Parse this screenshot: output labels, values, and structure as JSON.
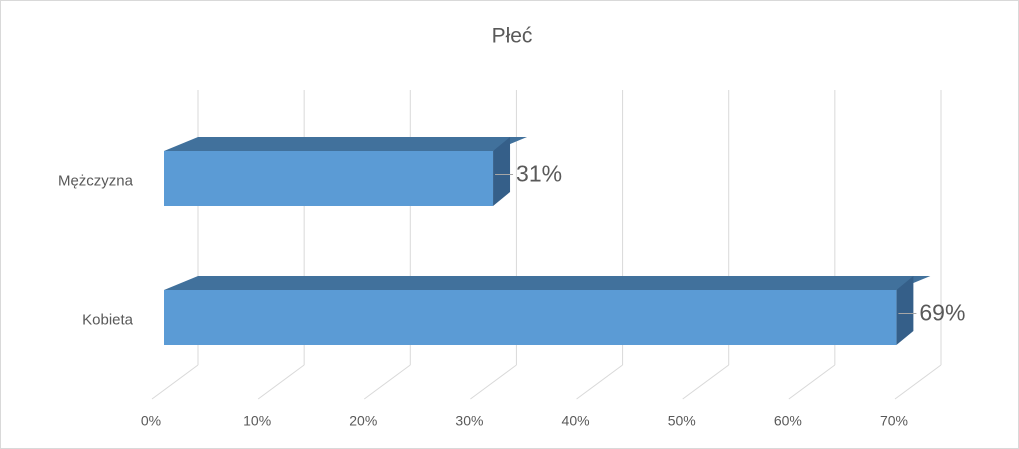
{
  "chart_data": {
    "type": "bar3d",
    "title": "Płeć",
    "categories": [
      "Mężczyzna",
      "Kobieta"
    ],
    "values": [
      31,
      69
    ],
    "value_labels": [
      "31%",
      "69%"
    ],
    "color": "#5b9bd5",
    "xlim": [
      0,
      70
    ],
    "xticks": [
      {
        "value": 0,
        "label": "0%"
      },
      {
        "value": 10,
        "label": "10%"
      },
      {
        "value": 20,
        "label": "20%"
      },
      {
        "value": 30,
        "label": "30%"
      },
      {
        "value": 40,
        "label": "40%"
      },
      {
        "value": 50,
        "label": "50%"
      },
      {
        "value": 60,
        "label": "60%"
      },
      {
        "value": 70,
        "label": "70%"
      }
    ],
    "grid": true
  }
}
